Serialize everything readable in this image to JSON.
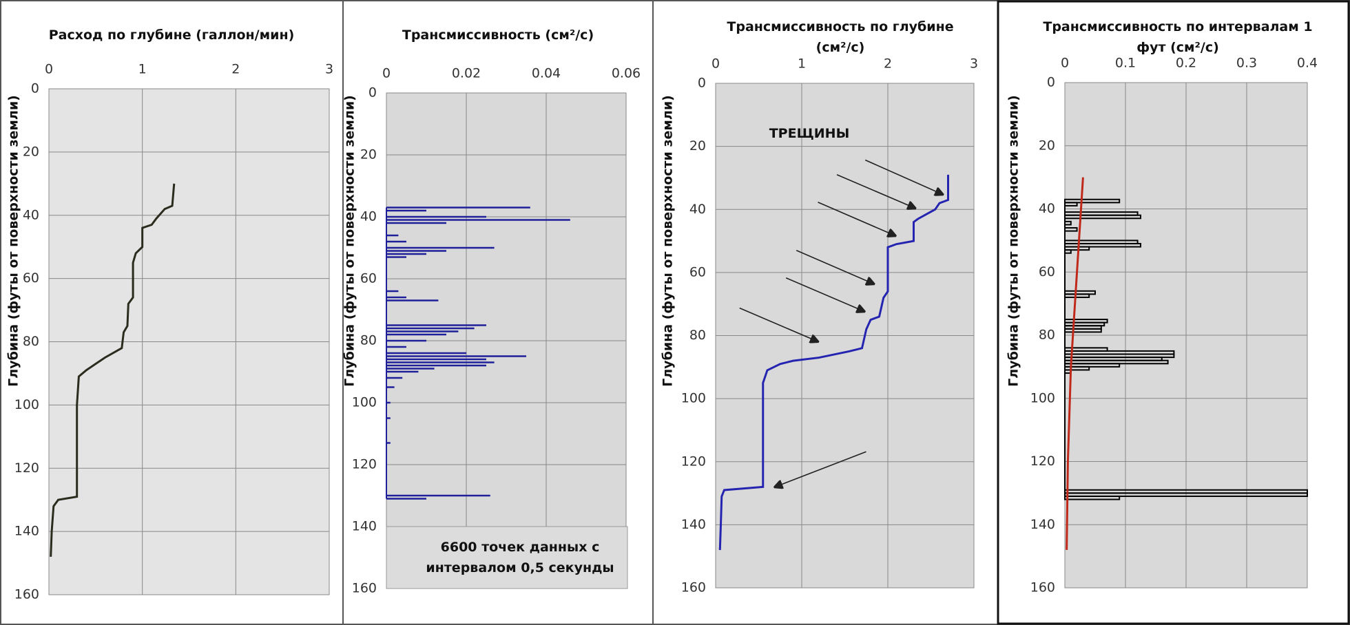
{
  "chart_data": [
    {
      "type": "line",
      "orientation": "vertical",
      "grid": true,
      "title": "Расход по глубине (галлон/мин)",
      "ylabel": "Глубина (футы от поверхности земли)",
      "xlim": [
        0,
        160
      ],
      "xticks": [
        0,
        20,
        40,
        60,
        80,
        100,
        120,
        140,
        160
      ],
      "ylim": [
        0,
        3
      ],
      "yticks": [
        0,
        1,
        2,
        3
      ],
      "series": [
        {
          "color": "#2b2b1e",
          "x": [
            30,
            37,
            38,
            41,
            43,
            44,
            50,
            52,
            55,
            66,
            68,
            75,
            77,
            82,
            85,
            87,
            89,
            91,
            100,
            129,
            130,
            132,
            140,
            148
          ],
          "values": [
            1.34,
            1.32,
            1.24,
            1.15,
            1.1,
            1.0,
            1.0,
            0.93,
            0.9,
            0.9,
            0.85,
            0.84,
            0.8,
            0.78,
            0.6,
            0.5,
            0.4,
            0.32,
            0.3,
            0.3,
            0.1,
            0.05,
            0.03,
            0.02
          ]
        }
      ]
    },
    {
      "type": "bar",
      "orientation": "vertical",
      "grid": true,
      "title": "Трансмиссивность (см²/с)",
      "ylabel": "Глубина (футы от поверхности земли)",
      "annotation": "6600 точек данных с интервалом 0,5 секунды",
      "xlim": [
        0,
        160
      ],
      "xticks": [
        0,
        20,
        40,
        60,
        80,
        100,
        120,
        140,
        160
      ],
      "ylim": [
        0,
        0.06
      ],
      "yticks": [
        0,
        0.02,
        0.04,
        0.06
      ],
      "series": [
        {
          "color": "#1f1f9a",
          "x": [
            37,
            38,
            40,
            41,
            42,
            46,
            48,
            50,
            51,
            52,
            53,
            64,
            66,
            67,
            75,
            76,
            77,
            78,
            80,
            82,
            84,
            85,
            86,
            87,
            88,
            89,
            90,
            92,
            95,
            100,
            105,
            113,
            130,
            131
          ],
          "values": [
            0.036,
            0.01,
            0.025,
            0.046,
            0.015,
            0.003,
            0.005,
            0.027,
            0.015,
            0.01,
            0.005,
            0.003,
            0.005,
            0.013,
            0.025,
            0.022,
            0.018,
            0.015,
            0.01,
            0.005,
            0.02,
            0.035,
            0.025,
            0.027,
            0.025,
            0.012,
            0.008,
            0.004,
            0.002,
            0.001,
            0.001,
            0.001,
            0.026,
            0.01
          ]
        }
      ]
    },
    {
      "type": "line",
      "orientation": "vertical",
      "grid": true,
      "title": "Трансмиссивность по глубине (см²/с)",
      "ylabel": "Глубина (футы от поверхности земли)",
      "annotation": "ТРЕЩИНЫ",
      "xlim": [
        0,
        160
      ],
      "xticks": [
        0,
        20,
        40,
        60,
        80,
        100,
        120,
        140,
        160
      ],
      "ylim": [
        0,
        3
      ],
      "yticks": [
        0,
        1,
        2,
        3
      ],
      "series": [
        {
          "color": "#2424b0",
          "x": [
            29,
            37,
            38,
            40,
            43,
            44,
            50,
            51,
            52,
            66,
            68,
            74,
            75,
            78,
            84,
            85,
            87,
            88,
            89,
            91,
            95,
            128,
            129,
            131,
            140,
            148
          ],
          "values": [
            2.7,
            2.7,
            2.6,
            2.55,
            2.35,
            2.3,
            2.3,
            2.1,
            2.0,
            2.0,
            1.95,
            1.9,
            1.8,
            1.75,
            1.7,
            1.55,
            1.2,
            0.9,
            0.75,
            0.6,
            0.55,
            0.55,
            0.1,
            0.07,
            0.06,
            0.05
          ]
        }
      ]
    },
    {
      "type": "bar",
      "orientation": "vertical",
      "grid": true,
      "title": "Трансмиссивность по интервалам 1 фут (см²/с)",
      "ylabel": "Глубина (футы от поверхности земли)",
      "xlim": [
        0,
        160
      ],
      "xticks": [
        0,
        20,
        40,
        60,
        80,
        100,
        120,
        140,
        160
      ],
      "ylim": [
        0,
        0.4
      ],
      "yticks": [
        0,
        0.1,
        0.2,
        0.3,
        0.4
      ],
      "series": [
        {
          "color": "#000000",
          "x": [
            37,
            38,
            41,
            42,
            44,
            46,
            50,
            51,
            52,
            53,
            66,
            67,
            75,
            76,
            77,
            78,
            84,
            85,
            86,
            87,
            88,
            89,
            90,
            91,
            129,
            130,
            131
          ],
          "values": [
            0.09,
            0.02,
            0.12,
            0.125,
            0.01,
            0.02,
            0.12,
            0.125,
            0.04,
            0.01,
            0.05,
            0.04,
            0.07,
            0.065,
            0.06,
            0.06,
            0.07,
            0.18,
            0.18,
            0.16,
            0.17,
            0.09,
            0.04,
            0.01,
            0.4,
            0.4,
            0.09
          ]
        },
        {
          "color": "#c0281a",
          "type": "line",
          "x": [
            30,
            45,
            60,
            90,
            120,
            148
          ],
          "values": [
            0.03,
            0.025,
            0.02,
            0.01,
            0.005,
            0.003
          ]
        }
      ]
    }
  ]
}
